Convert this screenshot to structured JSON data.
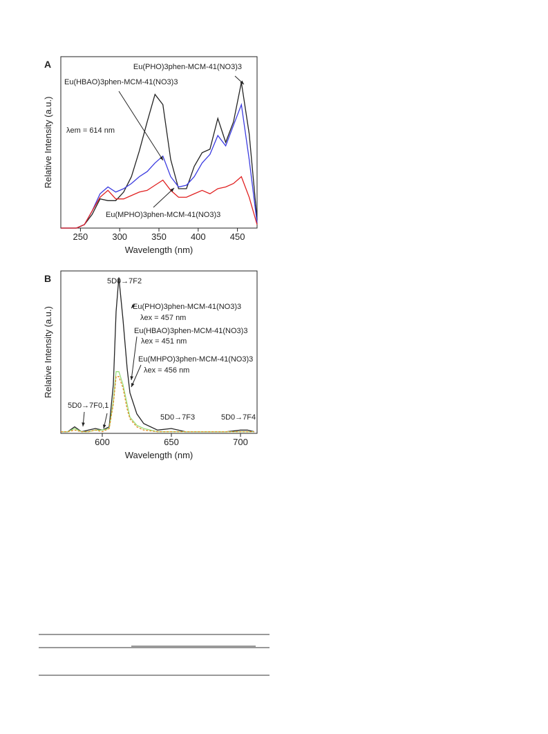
{
  "chart_data": [
    {
      "type": "line",
      "panel": "A",
      "x_label": "Wavelength (nm)",
      "y_label": "Relative Intensity (a.u.)",
      "x": [
        225,
        235,
        245,
        255,
        265,
        275,
        285,
        295,
        305,
        315,
        325,
        335,
        345,
        355,
        365,
        375,
        385,
        395,
        405,
        415,
        425,
        435,
        445,
        455,
        465,
        475
      ],
      "series": [
        {
          "color": "#222222",
          "values": [
            0,
            0,
            0,
            2,
            8,
            17,
            16,
            16,
            21,
            30,
            45,
            62,
            78,
            72,
            40,
            23,
            23,
            36,
            44,
            46,
            64,
            50,
            62,
            85,
            55,
            5
          ]
        },
        {
          "color": "#3a3ae0",
          "values": [
            0,
            0,
            0,
            2,
            10,
            20,
            24,
            21,
            23,
            26,
            30,
            33,
            38,
            42,
            30,
            24,
            25,
            30,
            38,
            43,
            54,
            48,
            60,
            72,
            40,
            3
          ]
        },
        {
          "color": "#e02020",
          "values": [
            0,
            0,
            0,
            2,
            10,
            18,
            22,
            17,
            17,
            19,
            21,
            22,
            25,
            28,
            22,
            18,
            18,
            20,
            22,
            20,
            23,
            24,
            26,
            30,
            18,
            2
          ]
        }
      ],
      "xlim": [
        225,
        475
      ],
      "ylim": [
        0,
        100
      ],
      "xticks": [
        250,
        300,
        350,
        400,
        450
      ],
      "annotations": [
        "Eu(PHO)3phen-MCM-41(NO3)3",
        "Eu(HBAO)3phen-MCM-41(NO3)3",
        "λem = 614 nm",
        "Eu(MPHO)3phen-MCM-41(NO3)3"
      ]
    },
    {
      "type": "line",
      "panel": "B",
      "x_label": "Wavelength (nm)",
      "y_label": "Relative Intensity (a.u.)",
      "x": [
        570,
        575,
        580,
        585,
        590,
        595,
        600,
        605,
        608,
        610,
        612,
        615,
        618,
        620,
        625,
        630,
        640,
        650,
        655,
        660,
        670,
        680,
        690,
        700,
        705,
        710
      ],
      "series": [
        {
          "color": "#222222",
          "values": [
            1,
            1,
            4,
            1,
            2,
            3,
            2,
            4,
            30,
            75,
            96,
            70,
            40,
            25,
            12,
            6,
            2,
            3,
            2,
            1,
            1,
            1,
            1,
            2,
            2,
            1
          ]
        },
        {
          "color": "#9be07a",
          "values": [
            1,
            1,
            3,
            1,
            1,
            2,
            2,
            3,
            20,
            38,
            38,
            30,
            18,
            10,
            5,
            3,
            1,
            1,
            1,
            1,
            1,
            1,
            1,
            1,
            1,
            1
          ]
        },
        {
          "color": "#e08a20",
          "values": [
            1,
            1,
            2,
            1,
            1,
            2,
            1,
            3,
            18,
            35,
            35,
            28,
            15,
            9,
            4,
            2,
            1,
            1,
            1,
            1,
            1,
            1,
            1,
            1,
            1,
            1
          ]
        }
      ],
      "xlim": [
        570,
        712
      ],
      "ylim": [
        0,
        100
      ],
      "xticks": [
        600,
        650,
        700
      ],
      "annotations": [
        "5D0→7F2",
        "Eu(PHO)3phen-MCM-41(NO3)3",
        "λex = 457 nm",
        "Eu(HBAO)3phen-MCM-41(NO3)3",
        "λex = 451 nm",
        "Eu(MHPO)3phen-MCM-41(NO3)3",
        "λex = 456 nm",
        "5D0→7F0,1",
        "5D0→7F3",
        "5D0→7F4"
      ]
    }
  ]
}
